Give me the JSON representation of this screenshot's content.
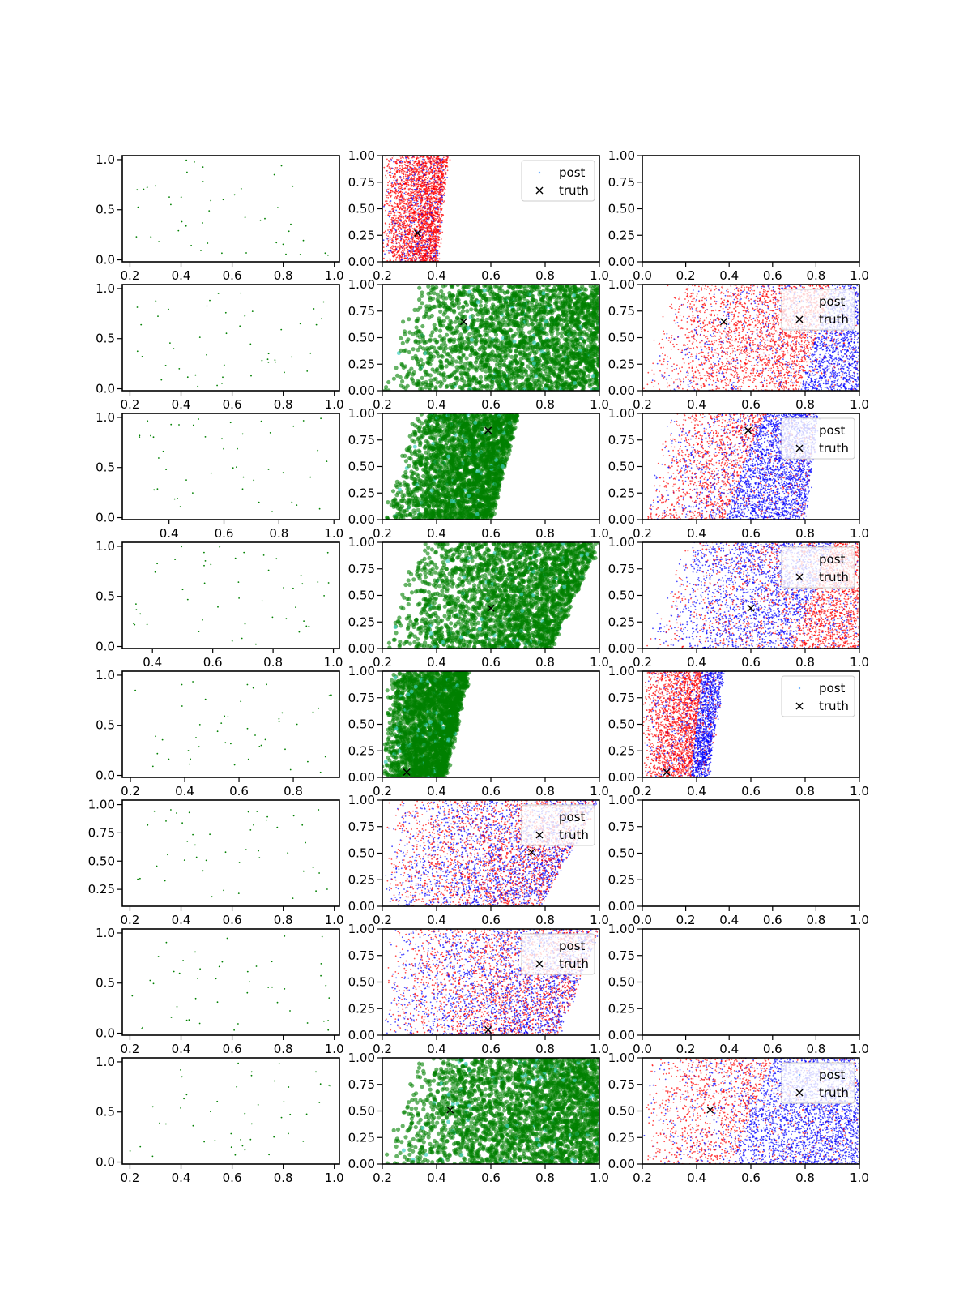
{
  "figure": {
    "title": ""
  },
  "colors": {
    "green": "#008000",
    "cyan": "#3fd0c0",
    "red": "#ff0000",
    "blue": "#0000ff",
    "truth": "#000000"
  },
  "chart_data": [
    {
      "row": 0,
      "col": 0,
      "type": "scatter",
      "kind": "sparse",
      "seed": 11,
      "n": 46,
      "xlim": [
        0.17,
        1.02
      ],
      "ylim": [
        -0.02,
        1.04
      ],
      "xticks": [
        0.2,
        0.4,
        0.6,
        0.8,
        1.0
      ],
      "xtick_labels": [
        "0.2",
        "0.4",
        "0.6",
        "0.8",
        "1.0"
      ],
      "yticks": [
        0.0,
        0.5,
        1.0
      ],
      "ytick_labels": [
        "0.0",
        "0.5",
        "1.0"
      ]
    },
    {
      "row": 0,
      "col": 1,
      "type": "scatter",
      "kind": "redblue",
      "seed": 12,
      "n": 3200,
      "region": {
        "y0": 0,
        "y1": 1,
        "left0": 0.2,
        "left1": 0.2,
        "right0": 0.4,
        "right1": 0.44
      },
      "split": {
        "x0": 0.42,
        "x1": 0.46
      },
      "red_frac": 0.72,
      "truth": [
        0.33,
        0.27
      ],
      "legend": {
        "entries": [
          "post",
          "truth"
        ],
        "position": "upper-right"
      },
      "xlim": [
        0.2,
        1.0
      ],
      "ylim": [
        0.0,
        1.0
      ],
      "xticks": [
        0.2,
        0.4,
        0.6,
        0.8,
        1.0
      ],
      "xtick_labels": [
        "0.2",
        "0.4",
        "0.6",
        "0.8",
        "1.0"
      ],
      "yticks": [
        0.0,
        0.25,
        0.5,
        0.75,
        1.0
      ],
      "ytick_labels": [
        "0.00",
        "0.25",
        "0.50",
        "0.75",
        "1.00"
      ]
    },
    {
      "row": 0,
      "col": 2,
      "type": "scatter",
      "kind": "empty",
      "xlim": [
        0.0,
        1.0
      ],
      "ylim": [
        0.0,
        1.0
      ],
      "xticks": [
        0.0,
        0.2,
        0.4,
        0.6,
        0.8,
        1.0
      ],
      "xtick_labels": [
        "0.0",
        "0.2",
        "0.4",
        "0.6",
        "0.8",
        "1.0"
      ],
      "yticks": [
        0.0,
        0.25,
        0.5,
        0.75,
        1.0
      ],
      "ytick_labels": [
        "0.00",
        "0.25",
        "0.50",
        "0.75",
        "1.00"
      ]
    },
    {
      "row": 1,
      "col": 0,
      "type": "scatter",
      "kind": "sparse",
      "seed": 21,
      "n": 48,
      "xlim": [
        0.17,
        1.02
      ],
      "ylim": [
        -0.02,
        1.04
      ],
      "xticks": [
        0.2,
        0.4,
        0.6,
        0.8,
        1.0
      ],
      "xtick_labels": [
        "0.2",
        "0.4",
        "0.6",
        "0.8",
        "1.0"
      ],
      "yticks": [
        0.0,
        0.5,
        1.0
      ],
      "ytick_labels": [
        "0.0",
        "0.5",
        "1.0"
      ]
    },
    {
      "row": 1,
      "col": 1,
      "type": "scatter",
      "kind": "green",
      "seed": 22,
      "n": 2600,
      "region": {
        "y0": 0,
        "y1": 1,
        "left0": 0.2,
        "left1": 0.32,
        "right0": 1.0,
        "right1": 1.0
      },
      "truth": [
        0.5,
        0.65
      ],
      "xlim": [
        0.2,
        1.0
      ],
      "ylim": [
        0.0,
        1.0
      ],
      "xticks": [
        0.2,
        0.4,
        0.6,
        0.8,
        1.0
      ],
      "xtick_labels": [
        "0.2",
        "0.4",
        "0.6",
        "0.8",
        "1.0"
      ],
      "yticks": [
        0.0,
        0.25,
        0.5,
        0.75,
        1.0
      ],
      "ytick_labels": [
        "0.00",
        "0.25",
        "0.50",
        "0.75",
        "1.00"
      ]
    },
    {
      "row": 1,
      "col": 2,
      "type": "scatter",
      "kind": "redblue",
      "seed": 23,
      "n": 4000,
      "region": {
        "y0": 0,
        "y1": 1,
        "left0": 0.2,
        "left1": 0.3,
        "right0": 1.0,
        "right1": 1.0
      },
      "split": {
        "x0": 0.78,
        "x1": 0.9
      },
      "red_frac": 0.65,
      "truth": [
        0.5,
        0.65
      ],
      "legend": {
        "entries": [
          "post",
          "truth"
        ],
        "position": "upper-right"
      },
      "xlim": [
        0.2,
        1.0
      ],
      "ylim": [
        0.0,
        1.0
      ],
      "xticks": [
        0.2,
        0.4,
        0.6,
        0.8,
        1.0
      ],
      "xtick_labels": [
        "0.2",
        "0.4",
        "0.6",
        "0.8",
        "1.0"
      ],
      "yticks": [
        0.0,
        0.25,
        0.5,
        0.75,
        1.0
      ],
      "ytick_labels": [
        "0.00",
        "0.25",
        "0.50",
        "0.75",
        "1.00"
      ]
    },
    {
      "row": 2,
      "col": 0,
      "type": "scatter",
      "kind": "sparse",
      "seed": 31,
      "n": 46,
      "xlim": [
        0.23,
        1.02
      ],
      "ylim": [
        -0.02,
        1.04
      ],
      "xticks": [
        0.4,
        0.6,
        0.8,
        1.0
      ],
      "xtick_labels": [
        "0.4",
        "0.6",
        "0.8",
        "1.0"
      ],
      "yticks": [
        0.0,
        0.5,
        1.0
      ],
      "ytick_labels": [
        "0.0",
        "0.5",
        "1.0"
      ]
    },
    {
      "row": 2,
      "col": 1,
      "type": "scatter",
      "kind": "green",
      "seed": 32,
      "n": 2600,
      "region": {
        "y0": 0,
        "y1": 1,
        "left0": 0.2,
        "left1": 0.32,
        "right0": 0.6,
        "right1": 0.7
      },
      "truth": [
        0.59,
        0.84
      ],
      "xlim": [
        0.2,
        1.0
      ],
      "ylim": [
        0.0,
        1.0
      ],
      "xticks": [
        0.2,
        0.4,
        0.6,
        0.8,
        1.0
      ],
      "xtick_labels": [
        "0.2",
        "0.4",
        "0.6",
        "0.8",
        "1.0"
      ],
      "yticks": [
        0.0,
        0.25,
        0.5,
        0.75,
        1.0
      ],
      "ytick_labels": [
        "0.00",
        "0.25",
        "0.50",
        "0.75",
        "1.00"
      ]
    },
    {
      "row": 2,
      "col": 2,
      "type": "scatter",
      "kind": "redblue",
      "seed": 33,
      "n": 4000,
      "region": {
        "y0": 0,
        "y1": 1,
        "left0": 0.2,
        "left1": 0.3,
        "right0": 0.8,
        "right1": 0.85
      },
      "split": {
        "x0": 0.5,
        "x1": 0.65
      },
      "red_frac": 0.55,
      "truth": [
        0.59,
        0.84
      ],
      "legend": {
        "entries": [
          "post",
          "truth"
        ],
        "position": "upper-right"
      },
      "xlim": [
        0.2,
        1.0
      ],
      "ylim": [
        0.0,
        1.0
      ],
      "xticks": [
        0.2,
        0.4,
        0.6,
        0.8,
        1.0
      ],
      "xtick_labels": [
        "0.2",
        "0.4",
        "0.6",
        "0.8",
        "1.0"
      ],
      "yticks": [
        0.0,
        0.25,
        0.5,
        0.75,
        1.0
      ],
      "ytick_labels": [
        "0.00",
        "0.25",
        "0.50",
        "0.75",
        "1.00"
      ]
    },
    {
      "row": 3,
      "col": 0,
      "type": "scatter",
      "kind": "sparse",
      "seed": 41,
      "n": 48,
      "xlim": [
        0.3,
        1.02
      ],
      "ylim": [
        -0.02,
        1.04
      ],
      "xticks": [
        0.4,
        0.6,
        0.8,
        1.0
      ],
      "xtick_labels": [
        "0.4",
        "0.6",
        "0.8",
        "1.0"
      ],
      "yticks": [
        0.0,
        0.5,
        1.0
      ],
      "ytick_labels": [
        "0.0",
        "0.5",
        "1.0"
      ]
    },
    {
      "row": 3,
      "col": 1,
      "type": "scatter",
      "kind": "green",
      "seed": 42,
      "n": 2600,
      "region": {
        "y0": 0,
        "y1": 1,
        "left0": 0.2,
        "left1": 0.32,
        "right0": 0.82,
        "right1": 1.0
      },
      "truth": [
        0.6,
        0.38
      ],
      "xlim": [
        0.2,
        1.0
      ],
      "ylim": [
        0.0,
        1.0
      ],
      "xticks": [
        0.2,
        0.4,
        0.6,
        0.8,
        1.0
      ],
      "xtick_labels": [
        "0.2",
        "0.4",
        "0.6",
        "0.8",
        "1.0"
      ],
      "yticks": [
        0.0,
        0.25,
        0.5,
        0.75,
        1.0
      ],
      "ytick_labels": [
        "0.00",
        "0.25",
        "0.50",
        "0.75",
        "1.00"
      ]
    },
    {
      "row": 3,
      "col": 2,
      "type": "scatter",
      "kind": "redblue",
      "seed": 43,
      "n": 4000,
      "region": {
        "y0": 0,
        "y1": 1,
        "left0": 0.2,
        "left1": 0.35,
        "right0": 1.0,
        "right1": 1.0
      },
      "split": {
        "x0": 0.75,
        "x1": 0.9
      },
      "red_frac": 0.5,
      "red_side": "right",
      "truth": [
        0.6,
        0.38
      ],
      "legend": {
        "entries": [
          "post",
          "truth"
        ],
        "position": "upper-right"
      },
      "xlim": [
        0.2,
        1.0
      ],
      "ylim": [
        0.0,
        1.0
      ],
      "xticks": [
        0.2,
        0.4,
        0.6,
        0.8,
        1.0
      ],
      "xtick_labels": [
        "0.2",
        "0.4",
        "0.6",
        "0.8",
        "1.0"
      ],
      "yticks": [
        0.0,
        0.25,
        0.5,
        0.75,
        1.0
      ],
      "ytick_labels": [
        "0.00",
        "0.25",
        "0.50",
        "0.75",
        "1.00"
      ]
    },
    {
      "row": 4,
      "col": 0,
      "type": "scatter",
      "kind": "sparse",
      "seed": 51,
      "n": 46,
      "xlim": [
        0.17,
        0.97
      ],
      "ylim": [
        -0.02,
        1.04
      ],
      "xticks": [
        0.2,
        0.4,
        0.6,
        0.8
      ],
      "xtick_labels": [
        "0.2",
        "0.4",
        "0.6",
        "0.8"
      ],
      "yticks": [
        0.0,
        0.5,
        1.0
      ],
      "ytick_labels": [
        "0.0",
        "0.5",
        "1.0"
      ]
    },
    {
      "row": 4,
      "col": 1,
      "type": "scatter",
      "kind": "green",
      "seed": 52,
      "n": 2600,
      "region": {
        "y0": 0,
        "y1": 1,
        "left0": 0.2,
        "left1": 0.22,
        "right0": 0.43,
        "right1": 0.52
      },
      "truth": [
        0.29,
        0.05
      ],
      "xlim": [
        0.2,
        1.0
      ],
      "ylim": [
        0.0,
        1.0
      ],
      "xticks": [
        0.2,
        0.4,
        0.6,
        0.8,
        1.0
      ],
      "xtick_labels": [
        "0.2",
        "0.4",
        "0.6",
        "0.8",
        "1.0"
      ],
      "yticks": [
        0.0,
        0.25,
        0.5,
        0.75,
        1.0
      ],
      "ytick_labels": [
        "0.00",
        "0.25",
        "0.50",
        "0.75",
        "1.00"
      ]
    },
    {
      "row": 4,
      "col": 2,
      "type": "scatter",
      "kind": "redblue",
      "seed": 53,
      "n": 3400,
      "region": {
        "y0": 0,
        "y1": 1,
        "left0": 0.2,
        "left1": 0.2,
        "right0": 0.44,
        "right1": 0.5
      },
      "split": {
        "x0": 0.38,
        "x1": 0.42
      },
      "red_frac": 0.72,
      "truth": [
        0.29,
        0.05
      ],
      "legend": {
        "entries": [
          "post",
          "truth"
        ],
        "position": "upper-right"
      },
      "xlim": [
        0.2,
        1.0
      ],
      "ylim": [
        0.0,
        1.0
      ],
      "xticks": [
        0.2,
        0.4,
        0.6,
        0.8,
        1.0
      ],
      "xtick_labels": [
        "0.2",
        "0.4",
        "0.6",
        "0.8",
        "1.0"
      ],
      "yticks": [
        0.0,
        0.25,
        0.5,
        0.75,
        1.0
      ],
      "ytick_labels": [
        "0.00",
        "0.25",
        "0.50",
        "0.75",
        "1.00"
      ]
    },
    {
      "row": 5,
      "col": 0,
      "type": "scatter",
      "kind": "sparse",
      "seed": 61,
      "n": 46,
      "xlim": [
        0.17,
        1.02
      ],
      "ylim": [
        0.1,
        1.04
      ],
      "xticks": [
        0.2,
        0.4,
        0.6,
        0.8,
        1.0
      ],
      "xtick_labels": [
        "0.2",
        "0.4",
        "0.6",
        "0.8",
        "1.0"
      ],
      "yticks": [
        0.25,
        0.5,
        0.75,
        1.0
      ],
      "ytick_labels": [
        "0.25",
        "0.50",
        "0.75",
        "1.00"
      ]
    },
    {
      "row": 5,
      "col": 1,
      "type": "scatter",
      "kind": "redblue",
      "seed": 62,
      "n": 4000,
      "region": {
        "y0": 0,
        "y1": 1,
        "left0": 0.2,
        "left1": 0.22,
        "right0": 0.78,
        "right1": 1.0
      },
      "split": {
        "x0": 0.6,
        "x1": 0.8
      },
      "red_frac": 0.5,
      "mixed": true,
      "truth": [
        0.75,
        0.51
      ],
      "legend": {
        "entries": [
          "post",
          "truth"
        ],
        "position": "upper-right"
      },
      "xlim": [
        0.2,
        1.0
      ],
      "ylim": [
        0.0,
        1.0
      ],
      "xticks": [
        0.2,
        0.4,
        0.6,
        0.8,
        1.0
      ],
      "xtick_labels": [
        "0.2",
        "0.4",
        "0.6",
        "0.8",
        "1.0"
      ],
      "yticks": [
        0.0,
        0.25,
        0.5,
        0.75,
        1.0
      ],
      "ytick_labels": [
        "0.00",
        "0.25",
        "0.50",
        "0.75",
        "1.00"
      ]
    },
    {
      "row": 5,
      "col": 2,
      "type": "scatter",
      "kind": "empty",
      "xlim": [
        0.0,
        1.0
      ],
      "ylim": [
        0.0,
        1.0
      ],
      "xticks": [
        0.0,
        0.2,
        0.4,
        0.6,
        0.8,
        1.0
      ],
      "xtick_labels": [
        "0.0",
        "0.2",
        "0.4",
        "0.6",
        "0.8",
        "1.0"
      ],
      "yticks": [
        0.0,
        0.25,
        0.5,
        0.75,
        1.0
      ],
      "ytick_labels": [
        "0.00",
        "0.25",
        "0.50",
        "0.75",
        "1.00"
      ]
    },
    {
      "row": 6,
      "col": 0,
      "type": "scatter",
      "kind": "sparse",
      "seed": 71,
      "n": 46,
      "xlim": [
        0.17,
        1.02
      ],
      "ylim": [
        -0.02,
        1.04
      ],
      "xticks": [
        0.2,
        0.4,
        0.6,
        0.8,
        1.0
      ],
      "xtick_labels": [
        "0.2",
        "0.4",
        "0.6",
        "0.8",
        "1.0"
      ],
      "yticks": [
        0.0,
        0.5,
        1.0
      ],
      "ytick_labels": [
        "0.0",
        "0.5",
        "1.0"
      ]
    },
    {
      "row": 6,
      "col": 1,
      "type": "scatter",
      "kind": "redblue",
      "seed": 72,
      "n": 4000,
      "region": {
        "y0": 0,
        "y1": 1,
        "left0": 0.2,
        "left1": 0.22,
        "right0": 0.85,
        "right1": 1.0
      },
      "split": {
        "x0": 0.6,
        "x1": 0.8
      },
      "red_frac": 0.5,
      "mixed": true,
      "truth": [
        0.59,
        0.05
      ],
      "legend": {
        "entries": [
          "post",
          "truth"
        ],
        "position": "upper-right"
      },
      "xlim": [
        0.2,
        1.0
      ],
      "ylim": [
        0.0,
        1.0
      ],
      "xticks": [
        0.2,
        0.4,
        0.6,
        0.8,
        1.0
      ],
      "xtick_labels": [
        "0.2",
        "0.4",
        "0.6",
        "0.8",
        "1.0"
      ],
      "yticks": [
        0.0,
        0.25,
        0.5,
        0.75,
        1.0
      ],
      "ytick_labels": [
        "0.00",
        "0.25",
        "0.50",
        "0.75",
        "1.00"
      ]
    },
    {
      "row": 6,
      "col": 2,
      "type": "scatter",
      "kind": "empty",
      "xlim": [
        0.0,
        1.0
      ],
      "ylim": [
        0.0,
        1.0
      ],
      "xticks": [
        0.0,
        0.2,
        0.4,
        0.6,
        0.8,
        1.0
      ],
      "xtick_labels": [
        "0.0",
        "0.2",
        "0.4",
        "0.6",
        "0.8",
        "1.0"
      ],
      "yticks": [
        0.0,
        0.25,
        0.5,
        0.75,
        1.0
      ],
      "ytick_labels": [
        "0.00",
        "0.25",
        "0.50",
        "0.75",
        "1.00"
      ]
    },
    {
      "row": 7,
      "col": 0,
      "type": "scatter",
      "kind": "sparse",
      "seed": 81,
      "n": 46,
      "xlim": [
        0.17,
        1.02
      ],
      "ylim": [
        -0.02,
        1.04
      ],
      "xticks": [
        0.2,
        0.4,
        0.6,
        0.8,
        1.0
      ],
      "xtick_labels": [
        "0.2",
        "0.4",
        "0.6",
        "0.8",
        "1.0"
      ],
      "yticks": [
        0.0,
        0.5,
        1.0
      ],
      "ytick_labels": [
        "0.0",
        "0.5",
        "1.0"
      ]
    },
    {
      "row": 7,
      "col": 1,
      "type": "scatter",
      "kind": "green",
      "seed": 82,
      "n": 2800,
      "region": {
        "y0": 0,
        "y1": 1,
        "left0": 0.2,
        "left1": 0.32,
        "right0": 1.0,
        "right1": 1.0
      },
      "truth": [
        0.45,
        0.51
      ],
      "xlim": [
        0.2,
        1.0
      ],
      "ylim": [
        0.0,
        1.0
      ],
      "xticks": [
        0.2,
        0.4,
        0.6,
        0.8,
        1.0
      ],
      "xtick_labels": [
        "0.2",
        "0.4",
        "0.6",
        "0.8",
        "1.0"
      ],
      "yticks": [
        0.0,
        0.25,
        0.5,
        0.75,
        1.0
      ],
      "ytick_labels": [
        "0.00",
        "0.25",
        "0.50",
        "0.75",
        "1.00"
      ]
    },
    {
      "row": 7,
      "col": 2,
      "type": "scatter",
      "kind": "redblue",
      "seed": 83,
      "n": 4000,
      "region": {
        "y0": 0,
        "y1": 1,
        "left0": 0.2,
        "left1": 0.22,
        "right0": 1.0,
        "right1": 1.0
      },
      "split": {
        "x0": 0.53,
        "x1": 0.68
      },
      "red_frac": 0.6,
      "truth": [
        0.45,
        0.51
      ],
      "legend": {
        "entries": [
          "post",
          "truth"
        ],
        "position": "upper-right"
      },
      "xlim": [
        0.2,
        1.0
      ],
      "ylim": [
        0.0,
        1.0
      ],
      "xticks": [
        0.2,
        0.4,
        0.6,
        0.8,
        1.0
      ],
      "xtick_labels": [
        "0.2",
        "0.4",
        "0.6",
        "0.8",
        "1.0"
      ],
      "yticks": [
        0.0,
        0.25,
        0.5,
        0.75,
        1.0
      ],
      "ytick_labels": [
        "0.00",
        "0.25",
        "0.50",
        "0.75",
        "1.00"
      ]
    }
  ]
}
